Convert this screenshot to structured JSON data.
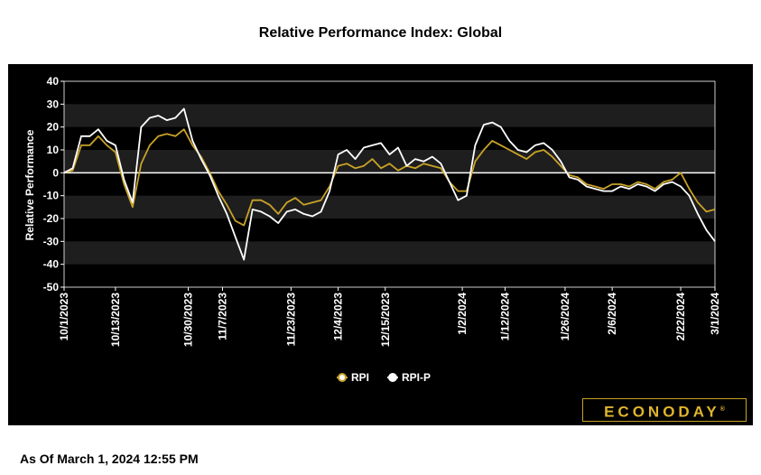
{
  "title": "Relative Performance Index: Global",
  "as_of": "As Of March 1, 2024 12:55 PM",
  "brand": "ECONODAY",
  "brand_mark": "®",
  "colors": {
    "rpi": "#c9a227",
    "rpi_p": "#ffffff",
    "panel": "#000000",
    "band": "#1e1e1e"
  },
  "chart_data": {
    "type": "line",
    "title": "Relative Performance Index: Global",
    "ylabel": "Relative Performance",
    "ylim": [
      -50,
      40
    ],
    "yticks": [
      40,
      30,
      20,
      10,
      0,
      -10,
      -20,
      -30,
      -40,
      -50
    ],
    "xticks": [
      "10/1/2023",
      "10/13/2023",
      "10/30/2023",
      "11/7/2023",
      "11/23/2023",
      "12/4/2023",
      "12/15/2023",
      "1/2/2024",
      "1/12/2024",
      "1/26/2024",
      "2/6/2024",
      "2/22/2024",
      "3/1/2024"
    ],
    "legend": {
      "position": "bottom",
      "entries": [
        "RPI",
        "RPI-P"
      ]
    },
    "grid": "alternating horizontal bands",
    "x": [
      "10/1/2023",
      "10/3/2023",
      "10/5/2023",
      "10/7/2023",
      "10/9/2023",
      "10/11/2023",
      "10/13/2023",
      "10/15/2023",
      "10/17/2023",
      "10/19/2023",
      "10/21/2023",
      "10/23/2023",
      "10/25/2023",
      "10/27/2023",
      "10/29/2023",
      "10/31/2023",
      "11/2/2023",
      "11/4/2023",
      "11/6/2023",
      "11/8/2023",
      "11/10/2023",
      "11/12/2023",
      "11/14/2023",
      "11/16/2023",
      "11/18/2023",
      "11/20/2023",
      "11/22/2023",
      "11/24/2023",
      "11/26/2023",
      "11/28/2023",
      "11/30/2023",
      "12/2/2023",
      "12/4/2023",
      "12/6/2023",
      "12/8/2023",
      "12/10/2023",
      "12/12/2023",
      "12/14/2023",
      "12/16/2023",
      "12/18/2023",
      "12/20/2023",
      "12/22/2023",
      "12/24/2023",
      "12/26/2023",
      "12/28/2023",
      "12/30/2023",
      "1/1/2024",
      "1/3/2024",
      "1/5/2024",
      "1/7/2024",
      "1/9/2024",
      "1/11/2024",
      "1/13/2024",
      "1/15/2024",
      "1/17/2024",
      "1/19/2024",
      "1/21/2024",
      "1/23/2024",
      "1/25/2024",
      "1/27/2024",
      "1/29/2024",
      "1/31/2024",
      "2/2/2024",
      "2/4/2024",
      "2/6/2024",
      "2/8/2024",
      "2/10/2024",
      "2/12/2024",
      "2/14/2024",
      "2/16/2024",
      "2/18/2024",
      "2/20/2024",
      "2/22/2024",
      "2/24/2024",
      "2/26/2024",
      "2/28/2024",
      "3/1/2024"
    ],
    "series": [
      {
        "name": "RPI",
        "color": "#c9a227",
        "values": [
          0,
          1,
          12,
          12,
          16,
          12,
          9,
          -5,
          -15,
          4,
          12,
          16,
          17,
          16,
          19,
          12,
          7,
          0,
          -8,
          -14,
          -21,
          -23,
          -12,
          -12,
          -14,
          -18,
          -13,
          -11,
          -14,
          -13,
          -12,
          -6,
          3,
          4,
          2,
          3,
          6,
          2,
          4,
          1,
          3,
          2,
          4,
          3,
          2,
          -4,
          -8,
          -8,
          5,
          10,
          14,
          12,
          10,
          8,
          6,
          9,
          10,
          7,
          3,
          -1,
          -2,
          -5,
          -6,
          -7,
          -5,
          -5,
          -6,
          -4,
          -5,
          -7,
          -4,
          -3,
          0,
          -7,
          -13,
          -17,
          -16
        ]
      },
      {
        "name": "RPI-P",
        "color": "#ffffff",
        "values": [
          0,
          2,
          16,
          16,
          19,
          14,
          12,
          -3,
          -13,
          20,
          24,
          25,
          23,
          24,
          28,
          14,
          6,
          -1,
          -10,
          -18,
          -28,
          -38,
          -16,
          -17,
          -19,
          -22,
          -17,
          -16,
          -18,
          -19,
          -17,
          -8,
          8,
          10,
          6,
          11,
          12,
          13,
          8,
          11,
          3,
          6,
          5,
          7,
          4,
          -4,
          -12,
          -10,
          12,
          21,
          22,
          20,
          14,
          10,
          9,
          12,
          13,
          10,
          5,
          -2,
          -3,
          -6,
          -7,
          -8,
          -8,
          -6,
          -7,
          -5,
          -6,
          -8,
          -5,
          -4,
          -6,
          -10,
          -18,
          -25,
          -30
        ]
      }
    ]
  }
}
